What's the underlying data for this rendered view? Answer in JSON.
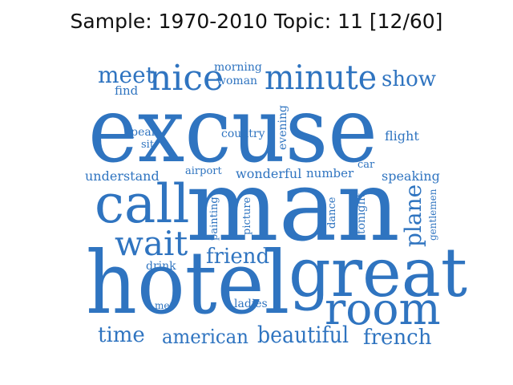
{
  "title": "Sample: 1970-2010 Topic: 11 [12/60]",
  "colors": {
    "word": "#2f74c0",
    "title": "#111111"
  },
  "words": {
    "excuse": "excuse",
    "man": "man",
    "hotel": "hotel",
    "great": "great",
    "call": "call",
    "room": "room",
    "minute": "minute",
    "nice": "nice",
    "wait": "wait",
    "meet": "meet",
    "show": "show",
    "friend": "friend",
    "beautiful": "beautiful",
    "american": "american",
    "french": "french",
    "time": "time",
    "plane": "plane",
    "understand": "understand",
    "speaking": "speaking",
    "wonderful": "wonderful",
    "number": "number",
    "flight": "flight",
    "country": "country",
    "morning": "morning",
    "woman": "woman",
    "find": "find",
    "speak": "speak",
    "sit": "sit",
    "evening": "evening",
    "airport": "airport",
    "car": "car",
    "painting": "painting",
    "picture": "picture",
    "dance": "dance",
    "tonight": "tonight",
    "gentlemen": "gentlemen",
    "drink": "drink",
    "ladies": "ladies",
    "met": "met"
  }
}
